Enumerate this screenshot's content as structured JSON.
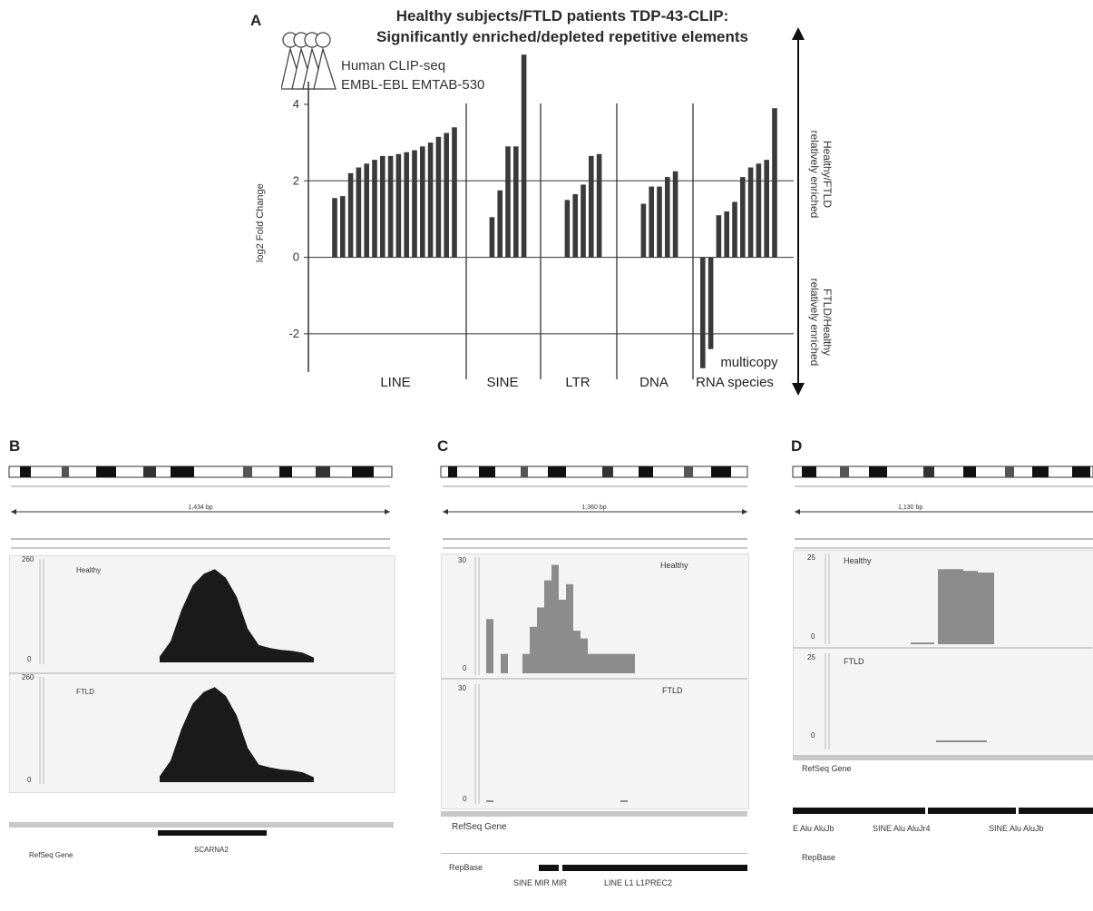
{
  "panel_a": {
    "label": "A",
    "title_line1": "Healthy subjects/FTLD patients TDP-43-CLIP:",
    "title_line2": "Significantly enriched/depleted repetitive elements",
    "legend_line1": "Human CLIP-seq",
    "legend_line2": "EMBL-EBL EMTAB-530",
    "right_label_top_1": "Healthy/FTLD",
    "right_label_top_2": "relatively enriched",
    "right_label_bottom_1": "FTLD/Healthy",
    "right_label_bottom_2": "relatively enriched"
  },
  "chart_data": [
    {
      "type": "bar",
      "ylabel": "log2 Fold Change",
      "ylim": [
        -3,
        5.4
      ],
      "yticks": [
        "4",
        "2",
        "0",
        "-2"
      ],
      "grid": "horizontal lines at 2, 0, -2",
      "groups": [
        {
          "name": "LINE",
          "values": [
            1.55,
            1.6,
            2.2,
            2.35,
            2.45,
            2.55,
            2.65,
            2.65,
            2.7,
            2.75,
            2.8,
            2.9,
            3.0,
            3.15,
            3.25,
            3.4
          ]
        },
        {
          "name": "SINE",
          "values": [
            1.05,
            1.75,
            2.9,
            2.9,
            5.3
          ]
        },
        {
          "name": "LTR",
          "values": [
            1.5,
            1.65,
            1.9,
            2.65,
            2.7
          ]
        },
        {
          "name": "DNA",
          "values": [
            1.4,
            1.85,
            1.85,
            2.1,
            2.25
          ]
        },
        {
          "name": "multicopy RNA species",
          "label_line1": "multicopy",
          "label_line2": "RNA species",
          "values": [
            -2.9,
            -2.4,
            1.1,
            1.2,
            1.45,
            2.1,
            2.35,
            2.45,
            2.55,
            3.9
          ]
        }
      ]
    },
    {
      "type": "area",
      "panel": "B",
      "scale_label": "1,434 bp",
      "tracks": [
        {
          "name": "Healthy",
          "ymax": "260",
          "ymin": "0"
        },
        {
          "name": "FTLD",
          "ymax": "260",
          "ymin": "0"
        }
      ],
      "features": [
        "SCARNA2"
      ],
      "annotation_track": "RefSeq Gene",
      "profile": [
        0.06,
        0.22,
        0.55,
        0.8,
        0.92,
        0.97,
        0.88,
        0.68,
        0.35,
        0.18,
        0.15,
        0.13,
        0.12,
        0.1,
        0.05
      ]
    },
    {
      "type": "bar",
      "panel": "C",
      "scale_label": "1,360 bp",
      "tracks": [
        {
          "name": "Healthy",
          "ymax": "30",
          "ymin": "0",
          "values": [
            14,
            0,
            5,
            0,
            5,
            12,
            17,
            24,
            28,
            19,
            23,
            11,
            9,
            5,
            5,
            5
          ]
        },
        {
          "name": "FTLD",
          "ymax": "30",
          "ymin": "0",
          "values": [
            0.5,
            0.5
          ]
        }
      ],
      "annotation_tracks": [
        "RefSeq Gene",
        "RepBase"
      ],
      "features": [
        "SINE MIR MIR",
        "LINE L1 L1PREC2"
      ]
    },
    {
      "type": "bar",
      "panel": "D",
      "scale_label": "1,130 bp",
      "tracks": [
        {
          "name": "Healthy",
          "ymax": "25",
          "ymin": "0",
          "values": [
            0.5,
            22,
            21.5,
            21
          ]
        },
        {
          "name": "FTLD",
          "ymax": "25",
          "ymin": "0",
          "values": [
            0.6
          ]
        }
      ],
      "annotation_tracks": [
        "RefSeq Gene",
        "RepBase"
      ],
      "features": [
        "E Alu AluJb",
        "SINE Alu AluJr4",
        "SINE Alu AluJb"
      ]
    }
  ],
  "panel_b": {
    "label": "B"
  },
  "panel_c": {
    "label": "C"
  },
  "panel_d": {
    "label": "D"
  },
  "colors": {
    "bar": "#3a3a3a",
    "coverage_black": "#1a1a1a",
    "coverage_gray": "#8c8c8c",
    "panel_bg": "#f4f4f4"
  }
}
